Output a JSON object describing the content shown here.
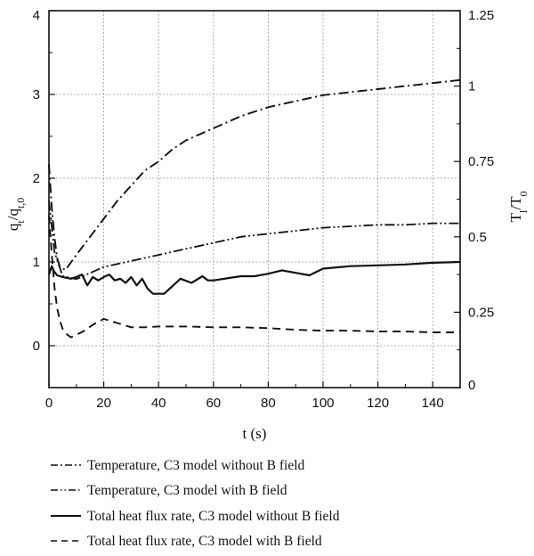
{
  "chart_data": {
    "type": "line",
    "xlabel": "t (s)",
    "ylabel_left": "q_t/q_t,0",
    "ylabel_right": "T_l/T_0",
    "xlim": [
      0,
      150
    ],
    "ylim_left": [
      -0.5,
      4
    ],
    "ylim_right": [
      0,
      1.25
    ],
    "grid": true,
    "legend_position": "bottom",
    "x_ticks": [
      "0",
      "20",
      "40",
      "60",
      "80",
      "100",
      "120",
      "140"
    ],
    "y_left_ticks": [
      "0",
      "1",
      "2",
      "3",
      "4"
    ],
    "y_right_ticks": [
      "0",
      "0.25",
      "0.5",
      "0.75",
      "1",
      "1.25"
    ],
    "series": [
      {
        "name": "Temperature, C3 model without B field",
        "axis": "right",
        "dash": "dashdot",
        "x": [
          0,
          1,
          2,
          3,
          4,
          6,
          10,
          15,
          20,
          25,
          30,
          35,
          40,
          45,
          50,
          55,
          60,
          70,
          80,
          90,
          100,
          110,
          120,
          130,
          140,
          150
        ],
        "y": [
          0.74,
          0.6,
          0.5,
          0.43,
          0.4,
          0.39,
          0.44,
          0.5,
          0.56,
          0.62,
          0.67,
          0.72,
          0.75,
          0.79,
          0.82,
          0.84,
          0.86,
          0.9,
          0.93,
          0.95,
          0.97,
          0.98,
          0.99,
          1.0,
          1.01,
          1.02
        ]
      },
      {
        "name": "Temperature, C3 model with B field",
        "axis": "right",
        "dash": "dashdotdot",
        "x": [
          0,
          2,
          5,
          10,
          15,
          20,
          30,
          40,
          50,
          60,
          70,
          80,
          90,
          100,
          110,
          120,
          130,
          140,
          150
        ],
        "y": [
          0.62,
          0.45,
          0.37,
          0.36,
          0.38,
          0.4,
          0.42,
          0.44,
          0.46,
          0.48,
          0.5,
          0.51,
          0.52,
          0.53,
          0.535,
          0.54,
          0.54,
          0.545,
          0.545
        ]
      },
      {
        "name": "Total heat flux rate, C3 model without B field",
        "axis": "left",
        "dash": "solid",
        "x": [
          0,
          1,
          2,
          3,
          5,
          8,
          10,
          12,
          14,
          16,
          18,
          20,
          22,
          24,
          26,
          28,
          30,
          32,
          34,
          36,
          38,
          42,
          48,
          52,
          56,
          58,
          60,
          70,
          75,
          80,
          85,
          90,
          95,
          100,
          110,
          120,
          130,
          140,
          150
        ],
        "y": [
          0.85,
          0.95,
          0.88,
          0.84,
          0.82,
          0.8,
          0.82,
          0.85,
          0.72,
          0.82,
          0.78,
          0.82,
          0.85,
          0.78,
          0.8,
          0.75,
          0.82,
          0.72,
          0.8,
          0.68,
          0.62,
          0.62,
          0.8,
          0.75,
          0.83,
          0.78,
          0.78,
          0.83,
          0.83,
          0.86,
          0.9,
          0.87,
          0.84,
          0.92,
          0.95,
          0.96,
          0.97,
          0.99,
          1.0
        ]
      },
      {
        "name": "Total heat flux rate, C3 model with B field",
        "axis": "left",
        "dash": "dashed",
        "x": [
          0,
          1,
          2,
          3,
          4,
          5,
          6,
          8,
          10,
          13,
          16,
          20,
          25,
          30,
          35,
          40,
          50,
          60,
          70,
          80,
          90,
          100,
          110,
          120,
          130,
          140,
          150
        ],
        "y": [
          1.55,
          1.1,
          0.7,
          0.45,
          0.3,
          0.2,
          0.15,
          0.1,
          0.13,
          0.18,
          0.25,
          0.32,
          0.27,
          0.22,
          0.22,
          0.23,
          0.23,
          0.22,
          0.22,
          0.21,
          0.19,
          0.18,
          0.18,
          0.17,
          0.17,
          0.16,
          0.16
        ]
      }
    ]
  }
}
